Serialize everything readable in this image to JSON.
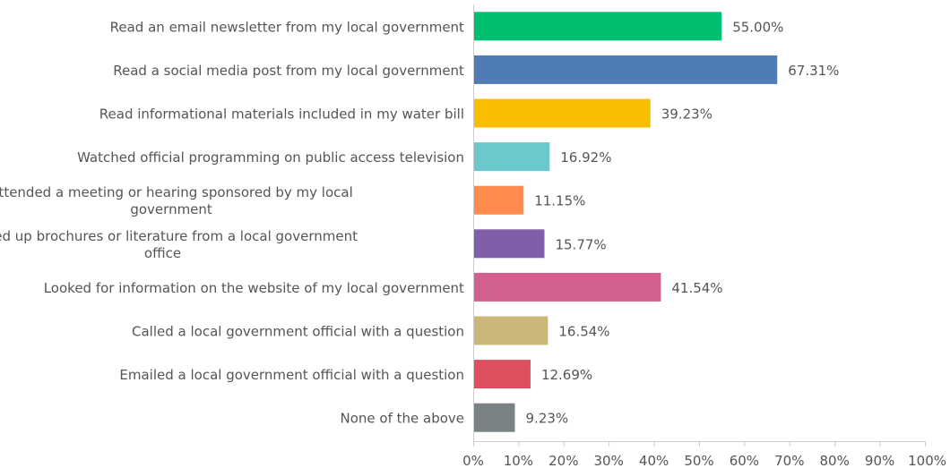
{
  "chart_data": {
    "type": "bar",
    "orientation": "horizontal",
    "categories": [
      "Read an email newsletter from my local government",
      "Read a social media post from my local government",
      "Read informational materials included in my water bill",
      "Watched official programming on public access television",
      "Attended a meeting or hearing sponsored by my local government",
      "Picked up brochures or literature from a local government office",
      "Looked for information on the website of my local government",
      "Called a local government official with a question",
      "Emailed a local government official with a question",
      "None of the above"
    ],
    "category_lines": [
      [
        "Read an email newsletter from my local government"
      ],
      [
        "Read a social media post from my local government"
      ],
      [
        "Read informational materials included in my water bill"
      ],
      [
        "Watched official programming on public access television"
      ],
      [
        "Attended a meeting or hearing sponsored by my local",
        "government"
      ],
      [
        "Picked up brochures or literature from a local government",
        "office"
      ],
      [
        "Looked for information on the website of my local government"
      ],
      [
        "Called a local government official with a question"
      ],
      [
        "Emailed a local government official with a question"
      ],
      [
        "None of the above"
      ]
    ],
    "values": [
      55.0,
      67.31,
      39.23,
      16.92,
      11.15,
      15.77,
      41.54,
      16.54,
      12.69,
      9.23
    ],
    "value_labels": [
      "55.00%",
      "67.31%",
      "39.23%",
      "16.92%",
      "11.15%",
      "15.77%",
      "41.54%",
      "16.54%",
      "12.69%",
      "9.23%"
    ],
    "colors": [
      "#00bf6f",
      "#507cb6",
      "#f9be00",
      "#6bc8cd",
      "#ff8b4f",
      "#7f5fa9",
      "#d25f90",
      "#cbb878",
      "#de4f5f",
      "#7b8286"
    ],
    "xlim": [
      0,
      100
    ],
    "xticks": [
      0,
      10,
      20,
      30,
      40,
      50,
      60,
      70,
      80,
      90,
      100
    ],
    "xtick_labels": [
      "0%",
      "10%",
      "20%",
      "30%",
      "40%",
      "50%",
      "60%",
      "70%",
      "80%",
      "90%",
      "100%"
    ],
    "grid": false,
    "title": "",
    "xlabel": "",
    "ylabel": ""
  }
}
